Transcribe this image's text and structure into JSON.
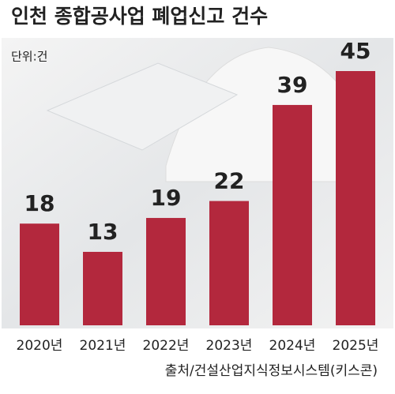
{
  "chart_data": {
    "type": "bar",
    "title": "인천 종합공사업 폐업신고 건수",
    "unit": "단위:건",
    "categories": [
      "2020년",
      "2021년",
      "2022년",
      "2023년",
      "2024년",
      "2025년"
    ],
    "values": [
      18,
      13,
      19,
      22,
      39,
      45
    ],
    "color": "#b3283d",
    "source": "출처/건설산업지식정보시스템(키스콘)"
  }
}
